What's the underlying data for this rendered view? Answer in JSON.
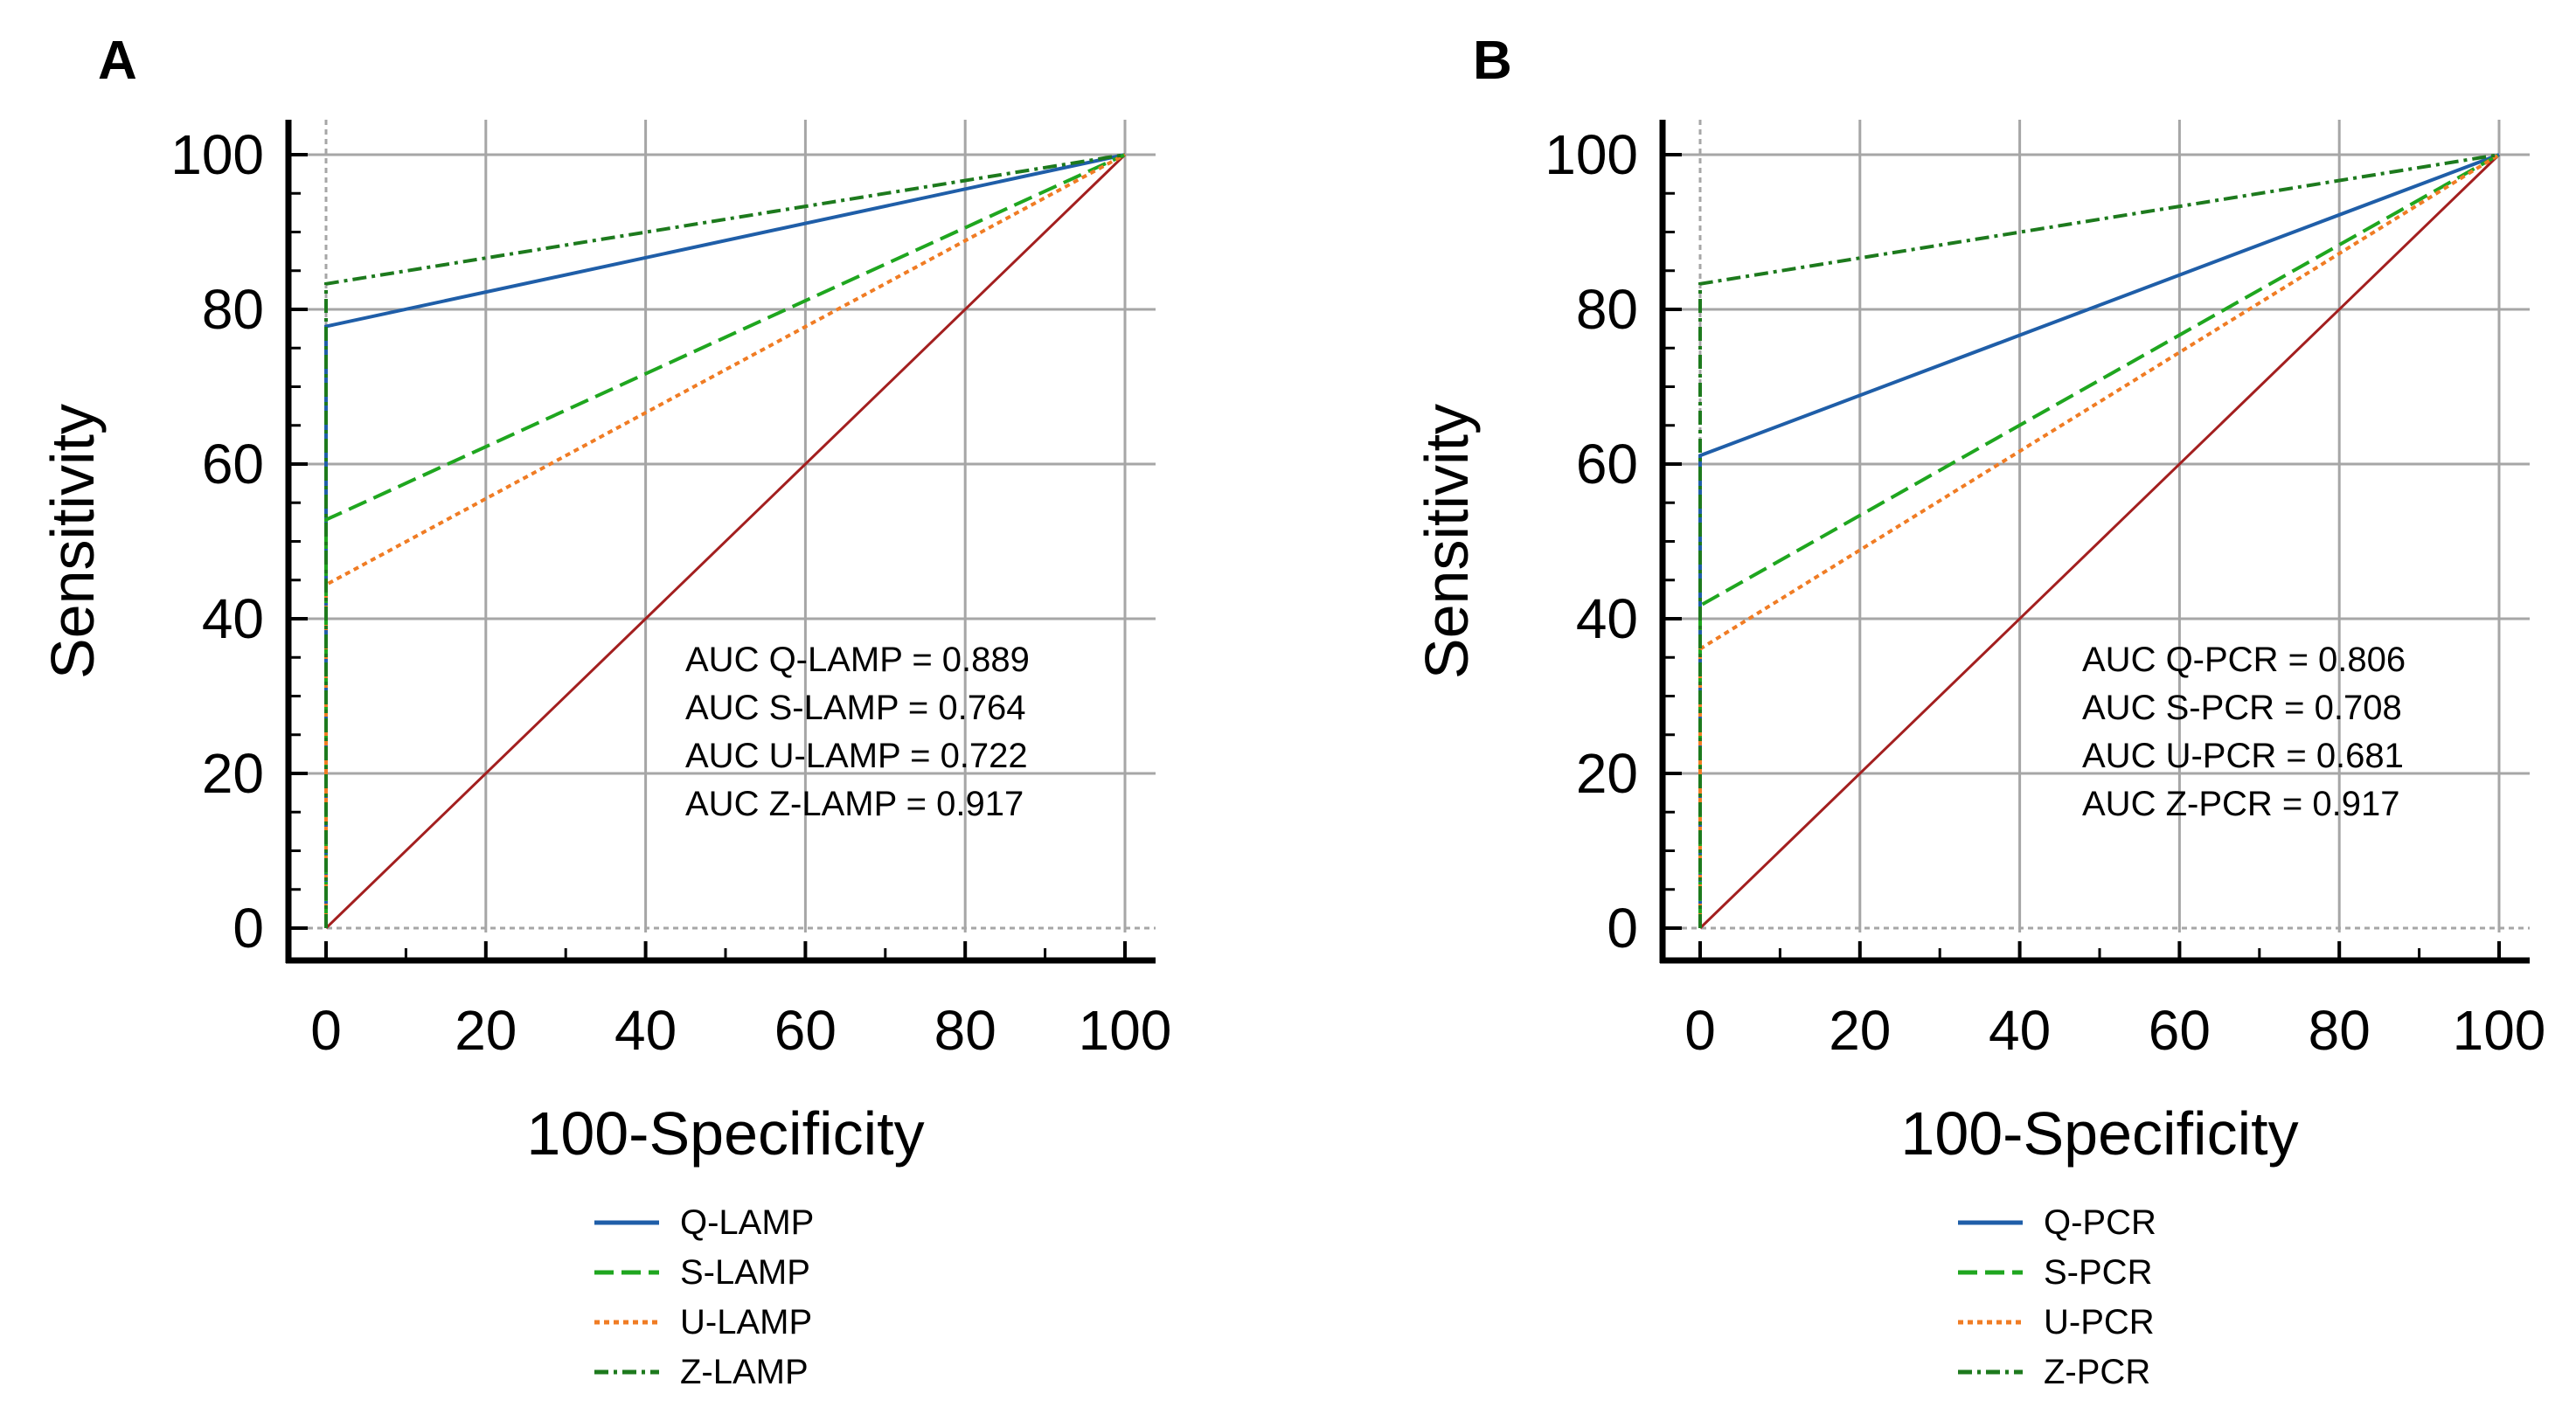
{
  "chart_data": [
    {
      "type": "line",
      "panel_label": "A",
      "xlabel": "100-Specificity",
      "ylabel": "Sensitivity",
      "xlim": [
        0,
        100
      ],
      "ylim": [
        0,
        100
      ],
      "xticks": [
        "0",
        "20",
        "40",
        "60",
        "80",
        "100"
      ],
      "yticks": [
        "0",
        "20",
        "40",
        "60",
        "80",
        "100"
      ],
      "grid": true,
      "reference_line": {
        "x": [
          0,
          100
        ],
        "y": [
          0,
          100
        ],
        "color": "#a31f1f"
      },
      "series": [
        {
          "name": "Q-LAMP",
          "color": "#1f5ea8",
          "dash": "solid",
          "x": [
            0,
            0,
            100
          ],
          "y": [
            0,
            77.8,
            100
          ]
        },
        {
          "name": "S-LAMP",
          "color": "#1fa61f",
          "dash": "dashed",
          "x": [
            0,
            0,
            100
          ],
          "y": [
            0,
            52.8,
            100
          ]
        },
        {
          "name": "U-LAMP",
          "color": "#f07c24",
          "dash": "dotted",
          "x": [
            0,
            0,
            100
          ],
          "y": [
            0,
            44.4,
            100
          ]
        },
        {
          "name": "Z-LAMP",
          "color": "#1d7a1d",
          "dash": "dash-dot",
          "x": [
            0,
            0,
            100
          ],
          "y": [
            0,
            83.3,
            100
          ]
        }
      ],
      "annotations": [
        "AUC Q-LAMP = 0.889",
        "AUC S-LAMP = 0.764",
        "AUC U-LAMP = 0.722",
        "AUC Z-LAMP = 0.917"
      ],
      "legend_position": "bottom"
    },
    {
      "type": "line",
      "panel_label": "B",
      "xlabel": "100-Specificity",
      "ylabel": "Sensitivity",
      "xlim": [
        0,
        100
      ],
      "ylim": [
        0,
        100
      ],
      "xticks": [
        "0",
        "20",
        "40",
        "60",
        "80",
        "100"
      ],
      "yticks": [
        "0",
        "20",
        "40",
        "60",
        "80",
        "100"
      ],
      "grid": true,
      "reference_line": {
        "x": [
          0,
          100
        ],
        "y": [
          0,
          100
        ],
        "color": "#a31f1f"
      },
      "series": [
        {
          "name": "Q-PCR",
          "color": "#1f5ea8",
          "dash": "solid",
          "x": [
            0,
            0,
            100
          ],
          "y": [
            0,
            61.1,
            100
          ]
        },
        {
          "name": "S-PCR",
          "color": "#1fa61f",
          "dash": "dashed",
          "x": [
            0,
            0,
            100
          ],
          "y": [
            0,
            41.7,
            100
          ]
        },
        {
          "name": "U-PCR",
          "color": "#f07c24",
          "dash": "dotted",
          "x": [
            0,
            0,
            100
          ],
          "y": [
            0,
            36.1,
            100
          ]
        },
        {
          "name": "Z-PCR",
          "color": "#1d7a1d",
          "dash": "dash-dot",
          "x": [
            0,
            0,
            100
          ],
          "y": [
            0,
            83.3,
            100
          ]
        }
      ],
      "annotations": [
        "AUC Q-PCR = 0.806",
        "AUC S-PCR = 0.708",
        "AUC U-PCR = 0.681",
        "AUC Z-PCR = 0.917"
      ],
      "legend_position": "bottom"
    }
  ]
}
